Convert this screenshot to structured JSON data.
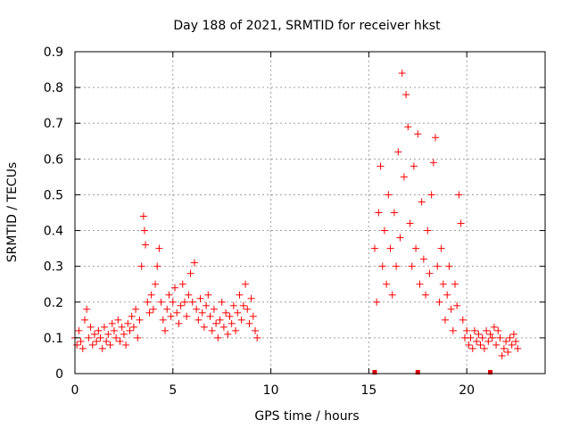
{
  "chart_data": {
    "type": "scatter",
    "title": "Day 188 of 2021, SRMTID for receiver hkst",
    "xlabel": "GPS time / hours",
    "ylabel": "SRMTID / TECUs",
    "xlim": [
      0,
      24
    ],
    "ylim": [
      0,
      0.9
    ],
    "xticks": [
      0,
      5,
      10,
      15,
      20
    ],
    "xtick_labels": [
      "0",
      "5",
      "10",
      "15",
      "20"
    ],
    "yticks": [
      0,
      0.1,
      0.2,
      0.3,
      0.4,
      0.5,
      0.6,
      0.7,
      0.8,
      0.9
    ],
    "ytick_labels": [
      "0",
      "0.1",
      "0.2",
      "0.3",
      "0.4",
      "0.5",
      "0.6",
      "0.7",
      "0.8",
      "0.9"
    ],
    "grid": true,
    "color": "#ff0000",
    "marker": "plus",
    "x_markers": [
      15.3,
      17.5,
      21.2
    ],
    "series": [
      {
        "name": "SRMTID",
        "points": [
          [
            0.0,
            0.1
          ],
          [
            0.1,
            0.08
          ],
          [
            0.2,
            0.12
          ],
          [
            0.3,
            0.09
          ],
          [
            0.4,
            0.07
          ],
          [
            0.5,
            0.15
          ],
          [
            0.6,
            0.18
          ],
          [
            0.7,
            0.1
          ],
          [
            0.8,
            0.13
          ],
          [
            0.9,
            0.08
          ],
          [
            1.0,
            0.11
          ],
          [
            1.1,
            0.09
          ],
          [
            1.2,
            0.12
          ],
          [
            1.3,
            0.1
          ],
          [
            1.4,
            0.07
          ],
          [
            1.5,
            0.13
          ],
          [
            1.6,
            0.09
          ],
          [
            1.7,
            0.11
          ],
          [
            1.8,
            0.08
          ],
          [
            1.9,
            0.14
          ],
          [
            2.0,
            0.12
          ],
          [
            2.1,
            0.1
          ],
          [
            2.2,
            0.15
          ],
          [
            2.3,
            0.09
          ],
          [
            2.4,
            0.13
          ],
          [
            2.5,
            0.11
          ],
          [
            2.6,
            0.08
          ],
          [
            2.7,
            0.14
          ],
          [
            2.8,
            0.12
          ],
          [
            2.9,
            0.16
          ],
          [
            3.0,
            0.13
          ],
          [
            3.1,
            0.18
          ],
          [
            3.2,
            0.1
          ],
          [
            3.3,
            0.15
          ],
          [
            3.4,
            0.3
          ],
          [
            3.5,
            0.44
          ],
          [
            3.55,
            0.4
          ],
          [
            3.6,
            0.36
          ],
          [
            3.7,
            0.2
          ],
          [
            3.8,
            0.17
          ],
          [
            3.9,
            0.22
          ],
          [
            4.0,
            0.18
          ],
          [
            4.1,
            0.25
          ],
          [
            4.2,
            0.3
          ],
          [
            4.3,
            0.35
          ],
          [
            4.4,
            0.2
          ],
          [
            4.5,
            0.15
          ],
          [
            4.6,
            0.12
          ],
          [
            4.7,
            0.18
          ],
          [
            4.8,
            0.22
          ],
          [
            4.9,
            0.16
          ],
          [
            5.0,
            0.2
          ],
          [
            5.1,
            0.24
          ],
          [
            5.2,
            0.17
          ],
          [
            5.3,
            0.14
          ],
          [
            5.4,
            0.19
          ],
          [
            5.5,
            0.25
          ],
          [
            5.6,
            0.2
          ],
          [
            5.7,
            0.16
          ],
          [
            5.8,
            0.22
          ],
          [
            5.9,
            0.28
          ],
          [
            6.0,
            0.2
          ],
          [
            6.1,
            0.31
          ],
          [
            6.2,
            0.18
          ],
          [
            6.3,
            0.15
          ],
          [
            6.4,
            0.21
          ],
          [
            6.5,
            0.17
          ],
          [
            6.6,
            0.13
          ],
          [
            6.7,
            0.19
          ],
          [
            6.8,
            0.22
          ],
          [
            6.9,
            0.16
          ],
          [
            7.0,
            0.12
          ],
          [
            7.1,
            0.18
          ],
          [
            7.2,
            0.14
          ],
          [
            7.3,
            0.1
          ],
          [
            7.4,
            0.15
          ],
          [
            7.5,
            0.2
          ],
          [
            7.6,
            0.13
          ],
          [
            7.7,
            0.17
          ],
          [
            7.8,
            0.11
          ],
          [
            7.9,
            0.16
          ],
          [
            8.0,
            0.14
          ],
          [
            8.1,
            0.19
          ],
          [
            8.2,
            0.12
          ],
          [
            8.3,
            0.17
          ],
          [
            8.4,
            0.22
          ],
          [
            8.5,
            0.15
          ],
          [
            8.6,
            0.19
          ],
          [
            8.7,
            0.25
          ],
          [
            8.8,
            0.18
          ],
          [
            8.9,
            0.14
          ],
          [
            9.0,
            0.21
          ],
          [
            9.1,
            0.16
          ],
          [
            9.2,
            0.12
          ],
          [
            9.3,
            0.1
          ],
          [
            15.3,
            0.35
          ],
          [
            15.4,
            0.2
          ],
          [
            15.5,
            0.45
          ],
          [
            15.6,
            0.58
          ],
          [
            15.7,
            0.3
          ],
          [
            15.8,
            0.4
          ],
          [
            15.9,
            0.25
          ],
          [
            16.0,
            0.5
          ],
          [
            16.1,
            0.35
          ],
          [
            16.2,
            0.22
          ],
          [
            16.3,
            0.45
          ],
          [
            16.4,
            0.3
          ],
          [
            16.5,
            0.62
          ],
          [
            16.6,
            0.38
          ],
          [
            16.7,
            0.84
          ],
          [
            16.8,
            0.55
          ],
          [
            16.9,
            0.78
          ],
          [
            17.0,
            0.69
          ],
          [
            17.1,
            0.42
          ],
          [
            17.2,
            0.3
          ],
          [
            17.3,
            0.58
          ],
          [
            17.4,
            0.35
          ],
          [
            17.5,
            0.67
          ],
          [
            17.6,
            0.25
          ],
          [
            17.7,
            0.48
          ],
          [
            17.8,
            0.32
          ],
          [
            17.9,
            0.22
          ],
          [
            18.0,
            0.4
          ],
          [
            18.1,
            0.28
          ],
          [
            18.2,
            0.5
          ],
          [
            18.3,
            0.59
          ],
          [
            18.4,
            0.66
          ],
          [
            18.5,
            0.3
          ],
          [
            18.6,
            0.2
          ],
          [
            18.7,
            0.35
          ],
          [
            18.8,
            0.25
          ],
          [
            18.9,
            0.15
          ],
          [
            19.0,
            0.22
          ],
          [
            19.1,
            0.3
          ],
          [
            19.2,
            0.18
          ],
          [
            19.3,
            0.12
          ],
          [
            19.4,
            0.25
          ],
          [
            19.5,
            0.19
          ],
          [
            19.6,
            0.5
          ],
          [
            19.7,
            0.42
          ],
          [
            19.8,
            0.15
          ],
          [
            19.9,
            0.1
          ],
          [
            20.0,
            0.12
          ],
          [
            20.1,
            0.08
          ],
          [
            20.2,
            0.1
          ],
          [
            20.3,
            0.07
          ],
          [
            20.4,
            0.12
          ],
          [
            20.5,
            0.09
          ],
          [
            20.6,
            0.11
          ],
          [
            20.7,
            0.08
          ],
          [
            20.8,
            0.1
          ],
          [
            20.9,
            0.07
          ],
          [
            21.0,
            0.12
          ],
          [
            21.1,
            0.09
          ],
          [
            21.2,
            0.11
          ],
          [
            21.3,
            0.1
          ],
          [
            21.4,
            0.13
          ],
          [
            21.5,
            0.08
          ],
          [
            21.6,
            0.12
          ],
          [
            21.7,
            0.1
          ],
          [
            21.8,
            0.05
          ],
          [
            21.9,
            0.07
          ],
          [
            22.0,
            0.09
          ],
          [
            22.1,
            0.06
          ],
          [
            22.2,
            0.1
          ],
          [
            22.3,
            0.08
          ],
          [
            22.4,
            0.11
          ],
          [
            22.5,
            0.09
          ],
          [
            22.6,
            0.07
          ]
        ]
      }
    ]
  }
}
